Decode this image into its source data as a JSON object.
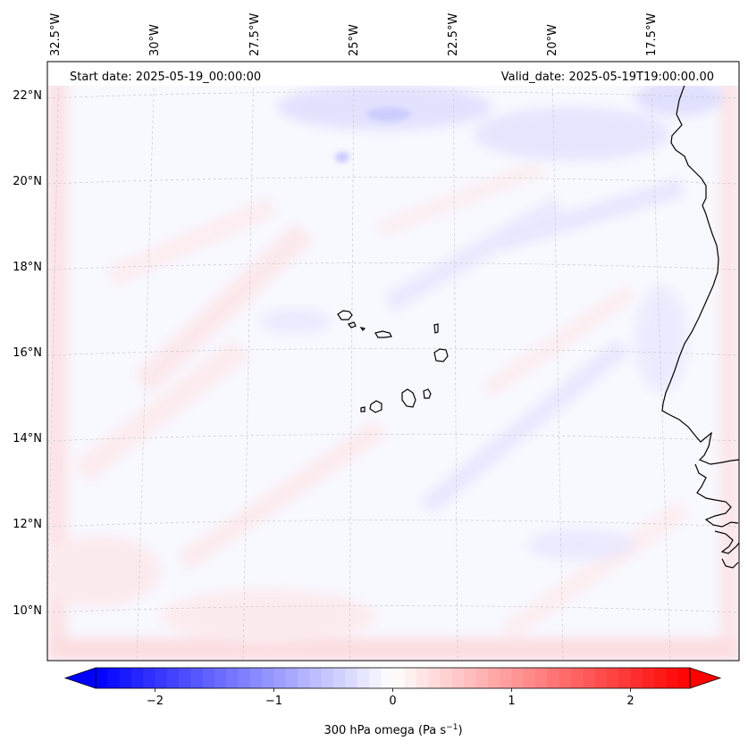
{
  "header": {
    "start_date": "Start date: 2025-05-19_00:00:00",
    "valid_date": "Valid_date: 2025-05-19T19:00:00.00"
  },
  "map": {
    "projection": "lambert-conformal-like",
    "region": "Cape Verde / West Africa Atlantic",
    "lon_labels": [
      "32.5°W",
      "30°W",
      "27.5°W",
      "25°W",
      "22.5°W",
      "20°W",
      "17.5°W"
    ],
    "lat_labels": [
      "22°N",
      "20°N",
      "18°N",
      "16°N",
      "14°N",
      "12°N",
      "10°N"
    ],
    "gridlines": true,
    "coastline_color": "#000000",
    "field": "300 hPa omega"
  },
  "colorbar": {
    "label": "300 hPa omega (Pa s",
    "label_sup": "−1",
    "label_close": ")",
    "ticks": [
      "−2",
      "−1",
      "0",
      "1",
      "2"
    ],
    "tick_values": [
      -2,
      -1,
      0,
      1,
      2
    ],
    "vmin": -2.5,
    "vmax": 2.5,
    "levels": 50,
    "colormap": "bwr",
    "extend": "both",
    "color_min": "#0000ff",
    "color_mid": "#ffffff",
    "color_max": "#ff0000"
  }
}
